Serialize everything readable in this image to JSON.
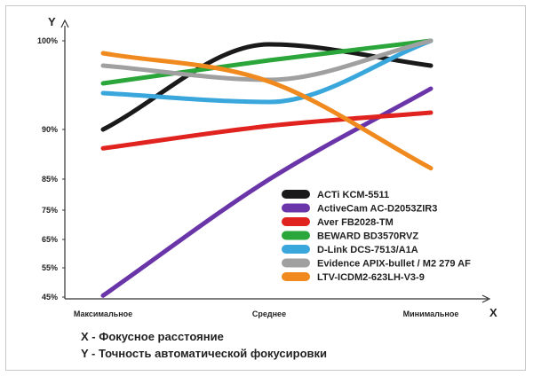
{
  "chart_data": {
    "type": "line",
    "categories": [
      "Максимальное",
      "Среднее",
      "Минимальное"
    ],
    "xlabel": "X",
    "ylabel": "Y",
    "y_ticks": [
      "100%",
      "90%",
      "85%",
      "75%",
      "65%",
      "55%",
      "45%"
    ],
    "y_scale": "non-linear (ticks unevenly spaced)",
    "grid": false,
    "legend_position": "bottom-right",
    "series": [
      {
        "name": "ACTi KCM-5511",
        "color": "#1a1a1a",
        "values": [
          90,
          99.6,
          97.2
        ]
      },
      {
        "name": "ActiveCam AC-D2053ZIR3",
        "color": "#6a35a8",
        "values": [
          45.5,
          84.9,
          94.6
        ]
      },
      {
        "name": "Aver FB2028-TM",
        "color": "#e0231f",
        "values": [
          88.1,
          90.4,
          91.9
        ]
      },
      {
        "name": "BEWARD BD3570RVZ",
        "color": "#2aa63a",
        "values": [
          95.2,
          97.8,
          100
        ]
      },
      {
        "name": "D-Link DCS-7513/A1A",
        "color": "#3aa7dc",
        "values": [
          94.1,
          93.1,
          100
        ]
      },
      {
        "name": "Evidence APIX-bullet / M2 279 AF",
        "color": "#a0a0a0",
        "values": [
          97.2,
          95.6,
          100
        ]
      },
      {
        "name": "LTV-ICDM2-623LH-V3-9",
        "color": "#f08a1e",
        "values": [
          98.6,
          95.4,
          86.1
        ]
      }
    ]
  },
  "notes": {
    "x": "X - Фокусное расстояние",
    "y": "Y - Точность автоматической фокусировки"
  }
}
